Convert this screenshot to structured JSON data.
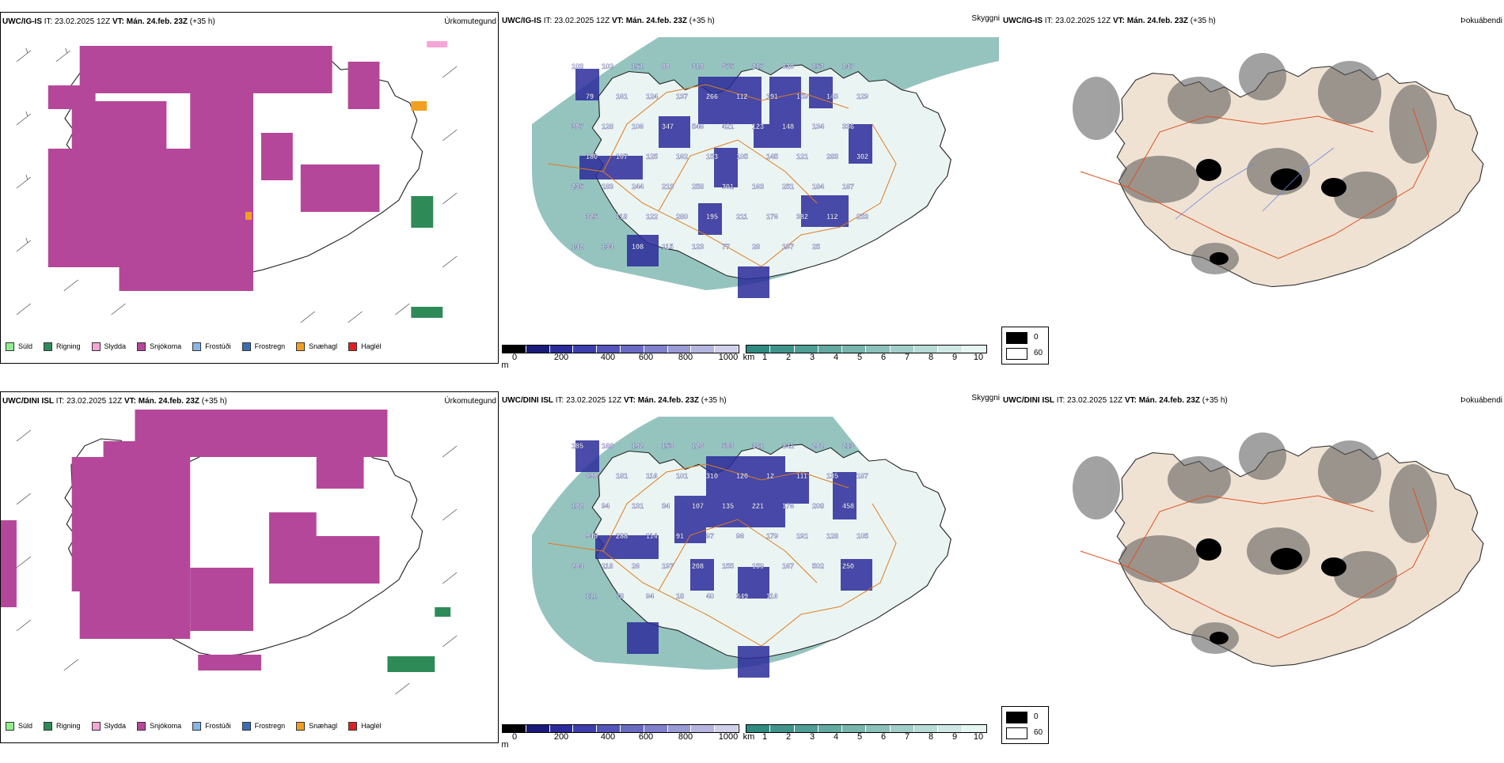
{
  "rows": [
    {
      "model": "UWC/IG-IS",
      "it_label": "IT: 23.02.2025 12Z",
      "vt_label": "VT: Mán. 24.feb. 23Z",
      "lead": "(+35 h)"
    },
    {
      "model": "UWC/DINI ISL",
      "it_label": "IT: 23.02.2025 12Z",
      "vt_label": "VT: Mán. 24.feb. 23Z",
      "lead": "(+35 h)"
    }
  ],
  "panel_titles": {
    "precip": "Úrkomutegund",
    "cloud": "Skyggni",
    "fog": "Þokuábendi"
  },
  "precip_legend": [
    {
      "label": "Súld",
      "color": "#90ee90"
    },
    {
      "label": "Rigning",
      "color": "#2e8b57"
    },
    {
      "label": "Slydda",
      "color": "#f4a6d7"
    },
    {
      "label": "Snjókoma",
      "color": "#b5479a"
    },
    {
      "label": "Frostúði",
      "color": "#87b7e8"
    },
    {
      "label": "Frostregn",
      "color": "#3a6fb5"
    },
    {
      "label": "Snæhagl",
      "color": "#f0a020"
    },
    {
      "label": "Haglél",
      "color": "#e02020"
    }
  ],
  "colorbar_height": {
    "unit": "m",
    "ticks": [
      "0",
      "200",
      "400",
      "600",
      "800",
      "1000"
    ],
    "colors": [
      "#000000",
      "#1a1a7a",
      "#2b2b9a",
      "#3d3dae",
      "#5454bb",
      "#6a6ac4",
      "#8080cc",
      "#9a9ad6",
      "#b5b5e0",
      "#d0d0ea"
    ]
  },
  "colorbar_visibility": {
    "unit": "km",
    "ticks": [
      "1",
      "2",
      "3",
      "4",
      "5",
      "6",
      "7",
      "8",
      "9",
      "10"
    ],
    "colors": [
      "#2f8a80",
      "#3e948a",
      "#4f9e95",
      "#62a9a0",
      "#77b5ad",
      "#8cc1ba",
      "#a2cec8",
      "#b8dbd6",
      "#cfe8e4",
      "#e6f4f2"
    ]
  },
  "fog_legend": [
    {
      "label": "0",
      "color": "#000000"
    },
    {
      "label": "60",
      "color": "#ffffff"
    }
  ],
  "cloud_labels": [
    [
      "103",
      "102",
      "151",
      "80",
      "318",
      "675",
      "217",
      "620",
      "153",
      "147",
      "79",
      "161",
      "124",
      "137",
      "266",
      "112",
      "191",
      "159",
      "143",
      "129",
      "307",
      "128",
      "106",
      "347",
      "546",
      "421",
      "123",
      "148",
      "134",
      "336",
      "180",
      "107",
      "125",
      "162",
      "153",
      "105",
      "145",
      "121",
      "283",
      "302",
      "235",
      "183",
      "244",
      "213",
      "258",
      "301",
      "163",
      "251",
      "184",
      "187",
      "325",
      "118",
      "122",
      "280",
      "195",
      "211",
      "176",
      "382",
      "112",
      "253",
      "142",
      "134",
      "108",
      "115",
      "123",
      "77",
      "28",
      "197",
      "25"
    ],
    [
      "185",
      "168",
      "192",
      "153",
      "126",
      "583",
      "361",
      "241",
      "202",
      "213",
      "890",
      "181",
      "116",
      "101",
      "310",
      "120",
      "12",
      "111",
      "135",
      "187",
      "102",
      "94",
      "131",
      "34",
      "107",
      "135",
      "221",
      "176",
      "208",
      "458",
      "945",
      "288",
      "114",
      "91",
      "97",
      "96",
      "179",
      "191",
      "128",
      "105",
      "204",
      "118",
      "26",
      "197",
      "208",
      "155",
      "159",
      "167",
      "502",
      "250",
      "111",
      "78",
      "94",
      "18",
      "40",
      "349",
      "116"
    ]
  ]
}
